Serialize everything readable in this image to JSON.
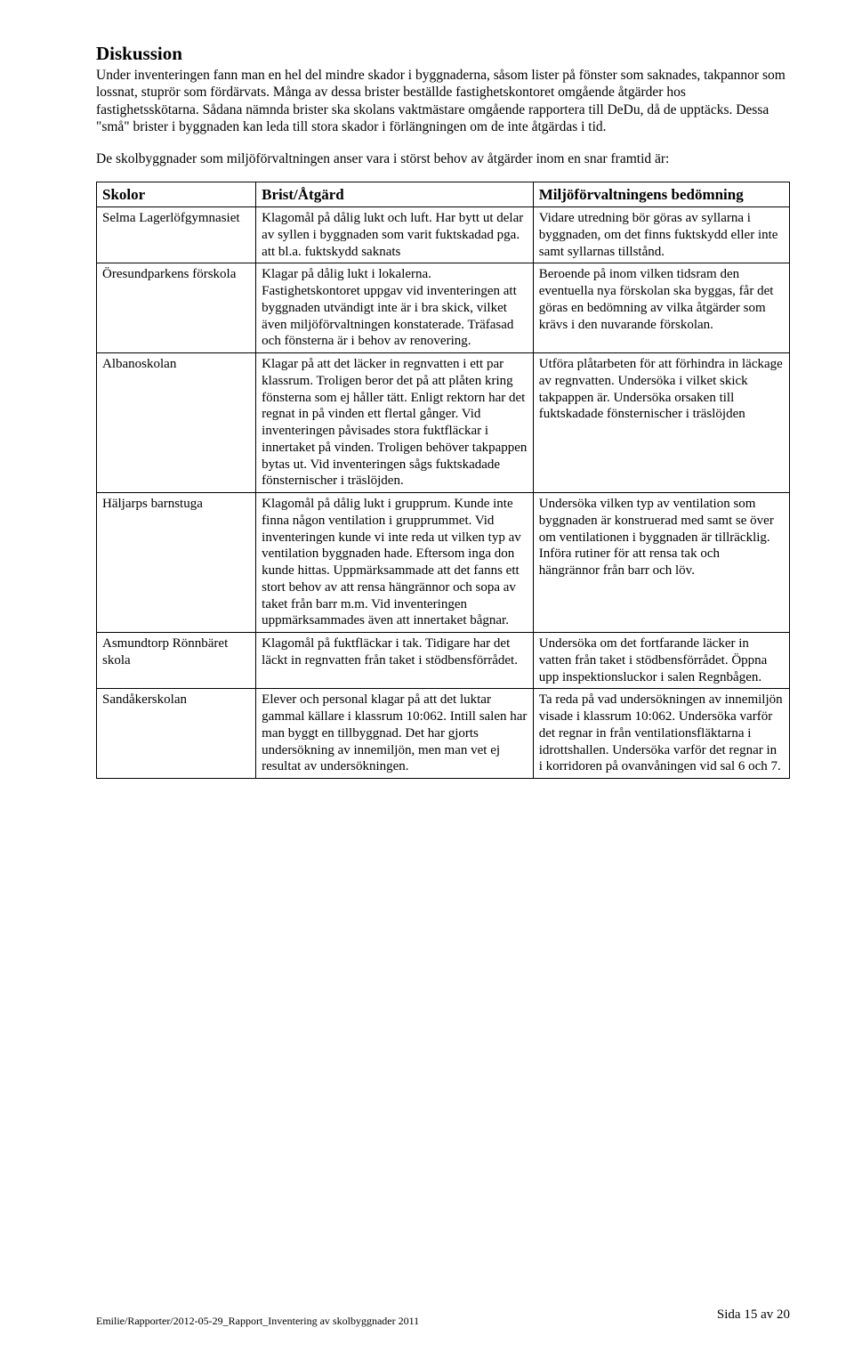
{
  "heading": "Diskussion",
  "para1": "Under inventeringen fann man en hel del mindre skador i byggnaderna, såsom lister på fönster som saknades, takpannor som lossnat, stuprör som fördärvats. Många av dessa brister beställde fastighetskontoret omgående åtgärder hos fastighetsskötarna. Sådana nämnda brister ska skolans vaktmästare omgående rapportera till DeDu, då de upptäcks. Dessa \"små\" brister i byggnaden kan leda till stora skador i förlängningen om de inte åtgärdas i tid.",
  "para2": "De skolbyggnader som miljöförvaltningen anser vara i störst behov av åtgärder inom en snar framtid är:",
  "table": {
    "headers": [
      "Skolor",
      "Brist/Åtgärd",
      "Miljöförvaltningens bedömning"
    ],
    "rows": [
      {
        "a": "Selma Lagerlöfgymnasiet",
        "b": "Klagomål på dålig lukt och luft. Har bytt ut delar av syllen i byggnaden som varit fuktskadad pga. att bl.a. fuktskydd saknats",
        "c": "Vidare utredning bör göras av syllarna i byggnaden, om det finns fuktskydd eller inte samt syllarnas tillstånd."
      },
      {
        "a": "Öresundparkens förskola",
        "b": "Klagar på dålig lukt i lokalerna. Fastighetskontoret uppgav vid inventeringen att byggnaden utvändigt inte är i bra skick, vilket även miljöförvaltningen konstaterade. Träfasad och fönsterna är i behov av renovering.",
        "c": "Beroende på inom vilken tidsram den eventuella nya förskolan ska byggas, får det göras en bedömning av vilka åtgärder som krävs i den nuvarande förskolan."
      },
      {
        "a": "Albanoskolan",
        "b": "Klagar på att det läcker in regnvatten i ett par klassrum. Troligen beror det på att plåten kring fönsterna som ej håller tätt. Enligt rektorn har det regnat in på vinden ett flertal gånger. Vid inventeringen påvisades stora fuktfläckar i innertaket på vinden. Troligen behöver takpappen bytas ut. Vid inventeringen sågs fuktskadade fönsternischer i träslöjden.",
        "c": "Utföra plåtarbeten för att förhindra in läckage av regnvatten. Undersöka i vilket skick takpappen är. Undersöka orsaken till fuktskadade fönsternischer i träslöjden"
      },
      {
        "a": "Häljarps barnstuga",
        "b": "Klagomål på dålig lukt i grupprum. Kunde inte finna någon ventilation i grupprummet. Vid inventeringen kunde vi inte reda ut vilken typ av ventilation byggnaden hade. Eftersom inga don kunde hittas. Uppmärksammade att det fanns ett stort behov av att rensa hängrännor och sopa av taket från barr m.m. Vid inventeringen uppmärksammades även att innertaket bågnar.",
        "c": "Undersöka vilken typ av ventilation som byggnaden är konstruerad med samt se över om ventilationen i byggnaden är tillräcklig. Införa rutiner för att rensa tak och hängrännor från barr och löv."
      },
      {
        "a": "Asmundtorp Rönnbäret skola",
        "b": "Klagomål på fuktfläckar i tak. Tidigare har det läckt in regnvatten från taket i stödbensförrådet.",
        "c": "Undersöka om det fortfarande läcker in vatten från taket i stödbensförrådet. Öppna upp inspektionsluckor i salen Regnbågen."
      },
      {
        "a": "Sandåkerskolan",
        "b": "Elever och personal klagar på att det luktar gammal källare i klassrum 10:062. Intill salen har man byggt en tillbyggnad. Det har gjorts undersökning av innemiljön, men man vet ej resultat av undersökningen.",
        "c": "Ta reda på vad undersökningen av innemiljön visade i klassrum 10:062. Undersöka varför det regnar in från ventilationsfläktarna i idrottshallen. Undersöka varför det regnar in i korridoren på ovanvåningen vid sal 6 och 7."
      }
    ]
  },
  "footer_left": "Emilie/Rapporter/2012-05-29_Rapport_Inventering av skolbyggnader 2011",
  "footer_right": "Sida 15 av 20"
}
